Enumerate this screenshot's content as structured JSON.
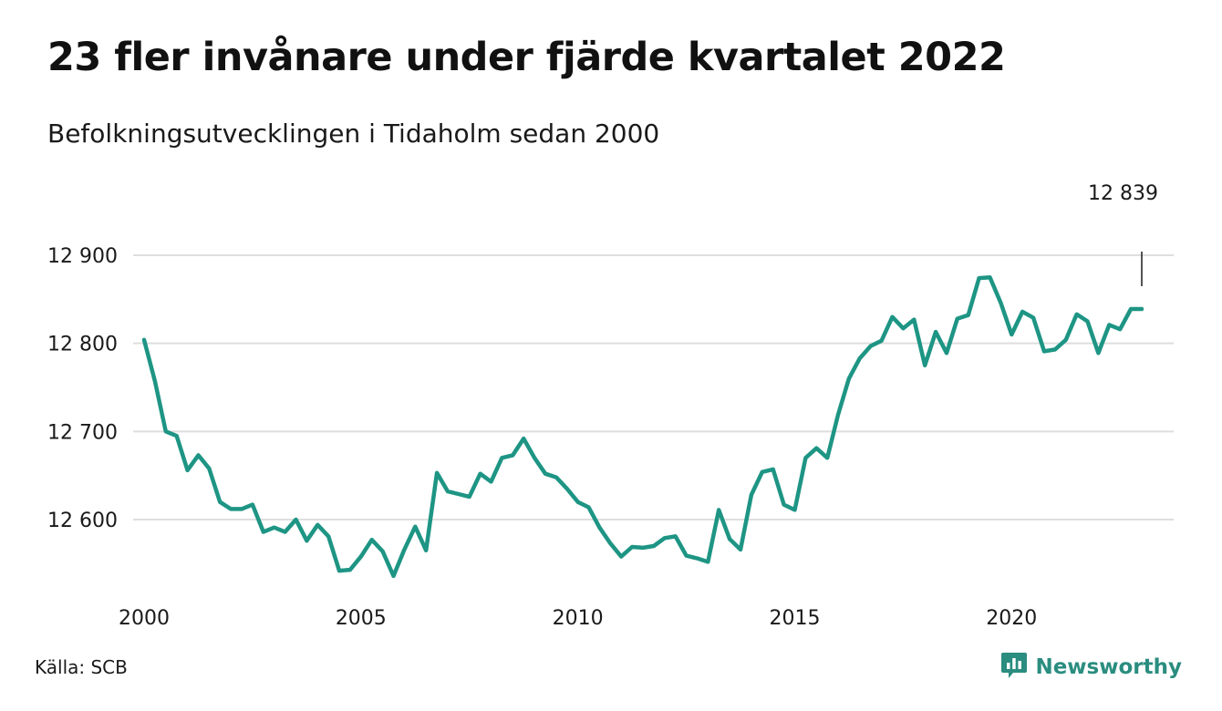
{
  "header": {
    "title": "23 fler invånare under fjärde kvartalet 2022",
    "subtitle": "Befolkningsutvecklingen i Tidaholm sedan 2000"
  },
  "footer": {
    "source": "Källa: SCB",
    "brand": "Newsworthy",
    "brand_icon": "bar-chart-speech-bubble-icon"
  },
  "colors": {
    "line": "#1e9584",
    "grid": "#dedede",
    "brand": "#2a8d7f",
    "text": "#1a1a1a"
  },
  "chart_data": {
    "type": "line",
    "title": "23 fler invånare under fjärde kvartalet 2022",
    "subtitle": "Befolkningsutvecklingen i Tidaholm sedan 2000",
    "xlabel": "",
    "ylabel": "",
    "x_ticks": [
      2000,
      2005,
      2010,
      2015,
      2020
    ],
    "y_ticks": [
      {
        "value": 12600,
        "label": "12 600"
      },
      {
        "value": 12700,
        "label": "12 700"
      },
      {
        "value": 12800,
        "label": "12 800"
      },
      {
        "value": 12900,
        "label": "12 900"
      }
    ],
    "ylim": [
      12530,
      12915
    ],
    "xlim": [
      2000,
      2023
    ],
    "grid": "horizontal",
    "annotation": {
      "text": "12 839",
      "x": 2023.0
    },
    "series": [
      {
        "x": [
          2000.0,
          2000.25,
          2000.5,
          2000.75,
          2001.0,
          2001.25,
          2001.5,
          2001.75,
          2002.0,
          2002.25,
          2002.5,
          2002.75,
          2003.0,
          2003.25,
          2003.5,
          2003.75,
          2004.0,
          2004.25,
          2004.5,
          2004.75,
          2005.0,
          2005.25,
          2005.5,
          2005.75,
          2006.0,
          2006.25,
          2006.5,
          2006.75,
          2007.0,
          2007.25,
          2007.5,
          2007.75,
          2008.0,
          2008.25,
          2008.5,
          2008.75,
          2009.0,
          2009.25,
          2009.5,
          2009.75,
          2010.0,
          2010.25,
          2010.5,
          2010.75,
          2011.0,
          2011.25,
          2011.5,
          2011.75,
          2012.0,
          2012.25,
          2012.5,
          2012.75,
          2013.0,
          2013.25,
          2013.5,
          2013.75,
          2014.0,
          2014.25,
          2014.5,
          2014.75,
          2015.0,
          2015.25,
          2015.5,
          2015.75,
          2016.0,
          2016.25,
          2016.5,
          2016.75,
          2017.0,
          2017.25,
          2017.5,
          2017.75,
          2018.0,
          2018.25,
          2018.5,
          2018.75,
          2019.0,
          2019.25,
          2019.5,
          2019.75,
          2020.0,
          2020.25,
          2020.5,
          2020.75,
          2021.0,
          2021.25,
          2021.5,
          2021.75,
          2022.0,
          2022.25,
          2022.5,
          2022.75,
          2023.0
        ],
        "values": [
          12804,
          12757,
          12700,
          12695,
          12656,
          12673,
          12658,
          12620,
          12612,
          12612,
          12617,
          12586,
          12591,
          12586,
          12600,
          12576,
          12594,
          12581,
          12542,
          12543,
          12558,
          12577,
          12564,
          12536,
          12566,
          12592,
          12565,
          12653,
          12632,
          12629,
          12626,
          12652,
          12643,
          12670,
          12673,
          12692,
          12670,
          12652,
          12648,
          12635,
          12620,
          12614,
          12591,
          12573,
          12558,
          12569,
          12568,
          12570,
          12579,
          12581,
          12559,
          12556,
          12552,
          12611,
          12578,
          12566,
          12628,
          12654,
          12657,
          12617,
          12611,
          12670,
          12681,
          12670,
          12719,
          12760,
          12783,
          12797,
          12803,
          12830,
          12817,
          12827,
          12775,
          12813,
          12789,
          12828,
          12832,
          12874,
          12875,
          12846,
          12810,
          12836,
          12829,
          12791,
          12793,
          12804,
          12833,
          12825,
          12789,
          12821,
          12816,
          12839,
          12839
        ]
      }
    ]
  }
}
